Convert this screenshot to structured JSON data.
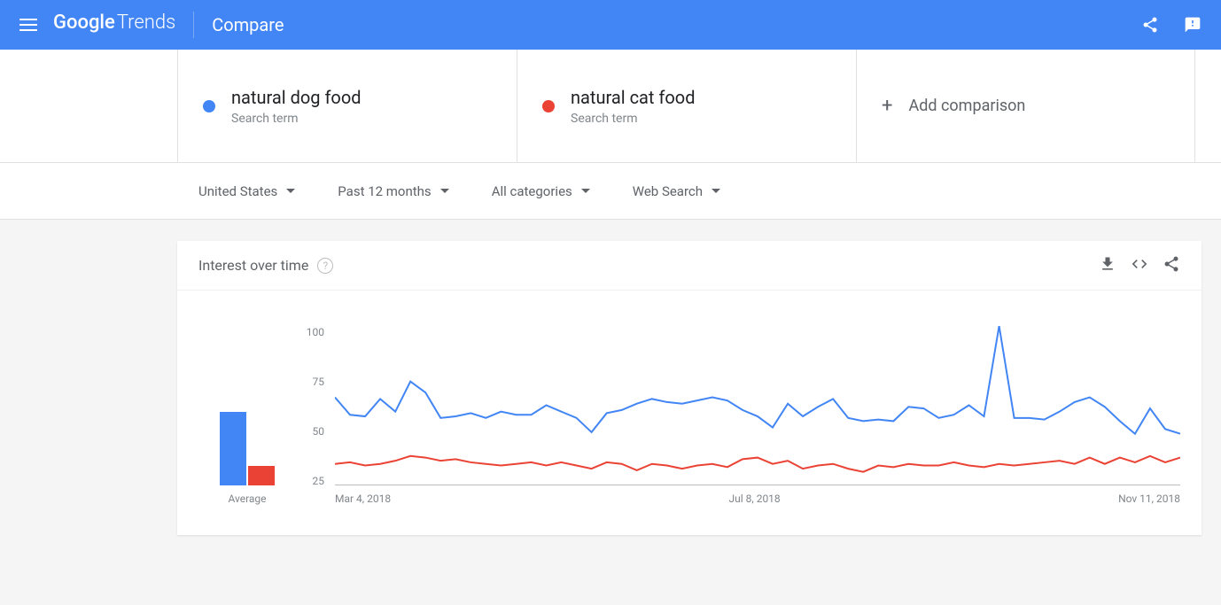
{
  "header": {
    "logo_strong": "Google",
    "logo_light": "Trends",
    "page_title": "Compare"
  },
  "compare": {
    "terms": [
      {
        "name": "natural dog food",
        "subtitle": "Search term",
        "color": "#4285f4"
      },
      {
        "name": "natural cat food",
        "subtitle": "Search term",
        "color": "#ea4335"
      }
    ],
    "add_label": "Add comparison"
  },
  "filters": {
    "region": "United States",
    "time": "Past 12 months",
    "category": "All categories",
    "search_type": "Web Search"
  },
  "chart": {
    "title": "Interest over time",
    "type": "line",
    "y_ticks": [
      100,
      75,
      50,
      25
    ],
    "ylim": [
      0,
      100
    ],
    "x_labels": [
      "Mar 4, 2018",
      "Jul 8, 2018",
      "Nov 11, 2018"
    ],
    "averages": [
      46,
      12
    ],
    "avg_label": "Average",
    "series": [
      {
        "color": "#4285f4",
        "stroke_width": 2,
        "values": [
          55,
          44,
          43,
          54,
          46,
          65,
          58,
          42,
          43,
          45,
          42,
          46,
          44,
          44,
          50,
          46,
          42,
          33,
          45,
          47,
          51,
          54,
          52,
          51,
          53,
          55,
          53,
          47,
          43,
          36,
          51,
          43,
          49,
          54,
          42,
          40,
          41,
          40,
          49,
          48,
          42,
          44,
          50,
          43,
          100,
          42,
          42,
          41,
          46,
          52,
          55,
          49,
          40,
          32,
          48,
          35,
          32
        ]
      },
      {
        "color": "#ea4335",
        "stroke_width": 2,
        "values": [
          13,
          14,
          12,
          13,
          15,
          18,
          17,
          15,
          16,
          14,
          13,
          12,
          13,
          14,
          12,
          14,
          12,
          10,
          14,
          13,
          9,
          13,
          12,
          10,
          12,
          13,
          11,
          16,
          17,
          13,
          15,
          10,
          12,
          13,
          10,
          8,
          12,
          11,
          13,
          12,
          12,
          14,
          12,
          11,
          13,
          12,
          13,
          14,
          15,
          13,
          17,
          13,
          17,
          14,
          18,
          14,
          17
        ]
      }
    ],
    "colors": {
      "background": "#ffffff",
      "axis": "#bdbdbd",
      "text": "#80868b"
    }
  }
}
